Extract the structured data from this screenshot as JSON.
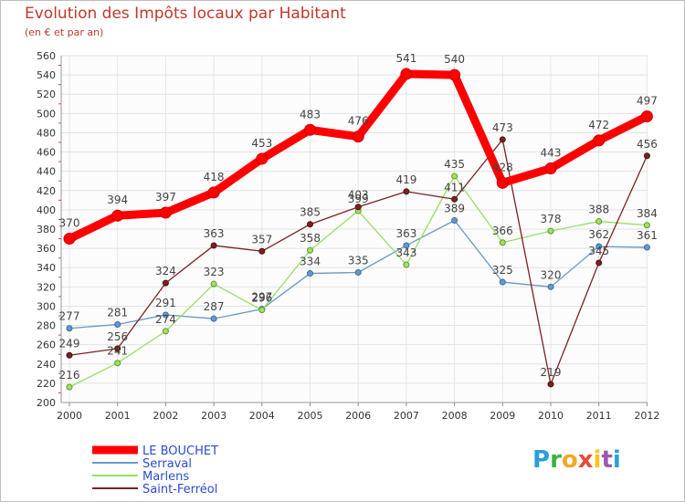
{
  "chart_data": {
    "type": "line",
    "title": "Evolution des Impôts locaux par Habitant",
    "subtitle": "(en € et par an)",
    "xlabel": "",
    "ylabel": "",
    "x": [
      "2000",
      "2001",
      "2002",
      "2003",
      "2004",
      "2005",
      "2006",
      "2007",
      "2008",
      "2009",
      "2010",
      "2011",
      "2012"
    ],
    "ylim": [
      200,
      560
    ],
    "yticks": [
      200,
      220,
      240,
      260,
      280,
      300,
      320,
      340,
      360,
      380,
      400,
      420,
      440,
      460,
      480,
      500,
      520,
      540,
      560
    ],
    "grid": true,
    "legend": "bottom-left",
    "series": [
      {
        "name": "LE BOUCHET",
        "color": "#ff0000",
        "values": [
          370,
          394,
          397,
          418,
          453,
          483,
          476,
          541,
          540,
          428,
          443,
          472,
          497
        ]
      },
      {
        "name": "Serraval",
        "color": "#6699cc",
        "values": [
          277,
          281,
          291,
          287,
          297,
          334,
          335,
          363,
          389,
          325,
          320,
          362,
          361
        ]
      },
      {
        "name": "Marlens",
        "color": "#99dd66",
        "values": [
          216,
          241,
          274,
          323,
          296,
          358,
          399,
          343,
          435,
          366,
          378,
          388,
          384
        ]
      },
      {
        "name": "Saint-Ferréol",
        "color": "#7a2222",
        "values": [
          249,
          256,
          324,
          363,
          357,
          385,
          403,
          419,
          411,
          473,
          219,
          345,
          456
        ]
      }
    ]
  },
  "legend_items": [
    "LE BOUCHET",
    "Serraval",
    "Marlens",
    "Saint-Ferréol"
  ],
  "brand": {
    "letters": [
      "P",
      "r",
      "o",
      "x",
      "i",
      "t",
      "i"
    ],
    "colors": [
      "#2a9fd6",
      "#3cb043",
      "#f5a623",
      "#e74c3c",
      "#f5c518",
      "#9b59b6",
      "#2a9fd6"
    ]
  }
}
